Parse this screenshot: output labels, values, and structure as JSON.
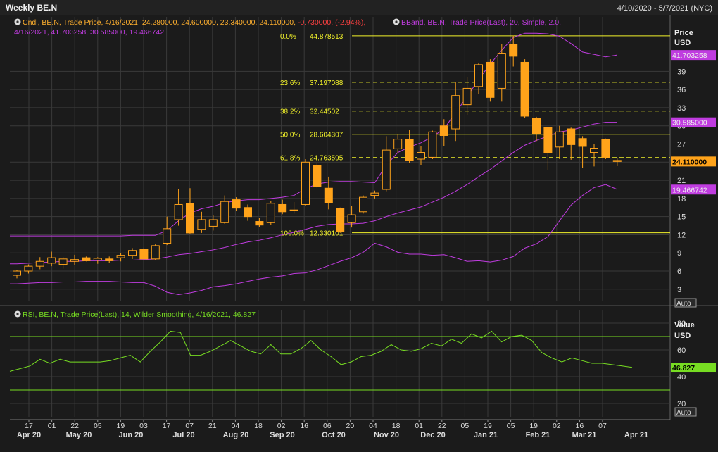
{
  "window": {
    "title": "Weekly BE.N",
    "date_range": "4/10/2020 - 5/7/2021 (NYC)"
  },
  "legend": {
    "candle_line1_prefix": "Cndl, BE.N, Trade Price, 4/16/2021, 24.280000, 24.600000, 23.340000, 24.110000, ",
    "candle_line1_change": "-0.730000, (-2.94%),",
    "bband_line1": "BBand, BE.N, Trade Price(Last), 20, Simple, 2.0,",
    "bband_line2": "4/16/2021, 41.703258, 30.585000, 19.466742",
    "rsi_line": "RSI, BE.N, Trade Price(Last), 14, Wilder Smoothing, 4/16/2021, 46.827"
  },
  "price_axis": {
    "title": "Price",
    "unit": "USD",
    "auto_label": "Auto",
    "upper_band_label": "41.703258",
    "middle_band_label": "30.585000",
    "last_price_label": "24.110000",
    "lower_band_label": "19.466742"
  },
  "rsi_axis": {
    "title": "Value",
    "unit": "USD",
    "auto_label": "Auto",
    "value_label": "46.827"
  },
  "colors": {
    "background": "#1b1b1b",
    "grid": "#3a3a3a",
    "candle": "#ffa31a",
    "bband": "#c03ce0",
    "fib": "#f2f22a",
    "rsi": "#77dd22",
    "text": "#dddddd",
    "down_change": "#ff4040"
  },
  "chart_data": [
    {
      "type": "candlestick",
      "title": "Weekly BE.N",
      "ylim": [
        1,
        48
      ],
      "yticks": [
        3,
        6,
        9,
        12,
        15,
        18,
        21,
        24,
        27,
        30,
        33,
        36,
        39
      ],
      "x_tick_labels": [
        "17",
        "01",
        "22",
        "05",
        "19",
        "03",
        "17",
        "07",
        "21",
        "04",
        "18",
        "02",
        "16",
        "06",
        "20",
        "04",
        "18",
        "01",
        "22",
        "05",
        "19",
        "05",
        "19",
        "02",
        "16",
        "07"
      ],
      "x_month_labels": [
        "Apr 20",
        "May 20",
        "Jun 20",
        "Jul 20",
        "Aug 20",
        "Sep 20",
        "Oct 20",
        "Nov 20",
        "Dec 20",
        "Jan 21",
        "Feb 21",
        "Mar 21",
        "Apr 21"
      ],
      "candles": [
        {
          "o": 5.3,
          "h": 6.2,
          "l": 4.8,
          "c": 6.0
        },
        {
          "o": 6.0,
          "h": 7.1,
          "l": 5.6,
          "c": 6.8
        },
        {
          "o": 6.8,
          "h": 8.3,
          "l": 6.3,
          "c": 7.6
        },
        {
          "o": 7.3,
          "h": 9.2,
          "l": 6.8,
          "c": 8.2
        },
        {
          "o": 7.1,
          "h": 8.3,
          "l": 6.4,
          "c": 8.0
        },
        {
          "o": 7.6,
          "h": 8.7,
          "l": 7.0,
          "c": 7.9
        },
        {
          "o": 8.2,
          "h": 8.4,
          "l": 7.6,
          "c": 7.7
        },
        {
          "o": 7.8,
          "h": 8.3,
          "l": 7.2,
          "c": 8.1
        },
        {
          "o": 8.0,
          "h": 8.4,
          "l": 7.3,
          "c": 7.7
        },
        {
          "o": 8.2,
          "h": 9.0,
          "l": 7.6,
          "c": 8.6
        },
        {
          "o": 8.6,
          "h": 9.8,
          "l": 8.0,
          "c": 9.4
        },
        {
          "o": 9.6,
          "h": 9.9,
          "l": 7.9,
          "c": 8.0
        },
        {
          "o": 8.0,
          "h": 10.5,
          "l": 7.8,
          "c": 10.2
        },
        {
          "o": 10.6,
          "h": 15.0,
          "l": 10.3,
          "c": 13.0
        },
        {
          "o": 14.5,
          "h": 19.5,
          "l": 13.5,
          "c": 17.0
        },
        {
          "o": 17.2,
          "h": 19.7,
          "l": 12.2,
          "c": 12.3
        },
        {
          "o": 12.9,
          "h": 15.8,
          "l": 12.3,
          "c": 14.5
        },
        {
          "o": 13.4,
          "h": 15.3,
          "l": 12.7,
          "c": 14.5
        },
        {
          "o": 14.0,
          "h": 18.5,
          "l": 13.8,
          "c": 17.5
        },
        {
          "o": 17.8,
          "h": 18.2,
          "l": 15.9,
          "c": 16.4
        },
        {
          "o": 16.5,
          "h": 17.0,
          "l": 14.3,
          "c": 15.0
        },
        {
          "o": 14.2,
          "h": 14.8,
          "l": 13.3,
          "c": 13.6
        },
        {
          "o": 14.0,
          "h": 17.6,
          "l": 13.6,
          "c": 17.2
        },
        {
          "o": 17.0,
          "h": 17.8,
          "l": 15.4,
          "c": 15.8
        },
        {
          "o": 16.0,
          "h": 17.4,
          "l": 15.5,
          "c": 16.1
        },
        {
          "o": 17.0,
          "h": 24.5,
          "l": 16.8,
          "c": 24.0
        },
        {
          "o": 23.5,
          "h": 23.8,
          "l": 19.8,
          "c": 20.0
        },
        {
          "o": 19.7,
          "h": 21.6,
          "l": 16.2,
          "c": 17.3
        },
        {
          "o": 16.3,
          "h": 16.5,
          "l": 12.3,
          "c": 12.5
        },
        {
          "o": 14.0,
          "h": 16.8,
          "l": 13.2,
          "c": 15.3
        },
        {
          "o": 15.8,
          "h": 18.5,
          "l": 15.5,
          "c": 18.2
        },
        {
          "o": 18.5,
          "h": 19.3,
          "l": 18.0,
          "c": 18.9
        },
        {
          "o": 19.5,
          "h": 28.3,
          "l": 19.2,
          "c": 26.0
        },
        {
          "o": 26.2,
          "h": 28.6,
          "l": 25.5,
          "c": 27.8
        },
        {
          "o": 27.8,
          "h": 29.3,
          "l": 23.8,
          "c": 24.3
        },
        {
          "o": 24.5,
          "h": 26.6,
          "l": 23.5,
          "c": 25.6
        },
        {
          "o": 24.8,
          "h": 29.2,
          "l": 24.5,
          "c": 29.0
        },
        {
          "o": 30.0,
          "h": 31.1,
          "l": 26.7,
          "c": 28.4
        },
        {
          "o": 29.5,
          "h": 37.2,
          "l": 27.5,
          "c": 35.0
        },
        {
          "o": 33.5,
          "h": 38.0,
          "l": 31.8,
          "c": 36.2
        },
        {
          "o": 36.5,
          "h": 40.4,
          "l": 35.2,
          "c": 40.1
        },
        {
          "o": 40.5,
          "h": 41.0,
          "l": 34.0,
          "c": 34.7
        },
        {
          "o": 36.2,
          "h": 43.5,
          "l": 34.0,
          "c": 42.0
        },
        {
          "o": 43.5,
          "h": 44.9,
          "l": 39.8,
          "c": 41.5
        },
        {
          "o": 40.5,
          "h": 41.0,
          "l": 31.3,
          "c": 31.6
        },
        {
          "o": 31.3,
          "h": 31.5,
          "l": 27.5,
          "c": 28.7
        },
        {
          "o": 29.7,
          "h": 29.8,
          "l": 22.7,
          "c": 25.5
        },
        {
          "o": 26.5,
          "h": 30.0,
          "l": 24.5,
          "c": 29.0
        },
        {
          "o": 29.5,
          "h": 29.7,
          "l": 24.4,
          "c": 26.9
        },
        {
          "o": 27.9,
          "h": 28.3,
          "l": 23.0,
          "c": 26.6
        },
        {
          "o": 25.6,
          "h": 27.0,
          "l": 23.3,
          "c": 26.3
        },
        {
          "o": 27.8,
          "h": 27.9,
          "l": 24.5,
          "c": 24.8
        },
        {
          "o": 24.28,
          "h": 24.6,
          "l": 23.34,
          "c": 24.11
        }
      ],
      "bband": {
        "upper": [
          11.8,
          11.8,
          11.8,
          11.8,
          11.8,
          11.8,
          11.8,
          11.8,
          11.8,
          11.8,
          11.9,
          11.9,
          11.9,
          12.7,
          14.3,
          15.6,
          16.3,
          16.7,
          17.3,
          17.6,
          17.8,
          17.8,
          18.0,
          18.2,
          18.5,
          19.6,
          20.4,
          20.7,
          20.8,
          20.8,
          20.7,
          20.6,
          23.5,
          25.6,
          26.5,
          27.2,
          28.2,
          29.5,
          32.2,
          34.8,
          37.7,
          40.2,
          42.5,
          44.6,
          45.3,
          45.3,
          45.2,
          44.8,
          43.6,
          42.2,
          41.8,
          41.4,
          41.7
        ],
        "middle": [
          7.2,
          7.3,
          7.4,
          7.5,
          7.6,
          7.6,
          7.7,
          7.7,
          7.7,
          7.8,
          7.8,
          7.9,
          8.0,
          8.3,
          8.7,
          8.9,
          9.2,
          9.5,
          9.9,
          10.4,
          10.8,
          11.1,
          11.5,
          12.0,
          12.4,
          12.9,
          13.4,
          13.7,
          13.8,
          13.8,
          13.9,
          14.3,
          15.0,
          15.6,
          16.1,
          16.6,
          17.4,
          18.2,
          19.2,
          20.3,
          21.6,
          22.8,
          24.2,
          25.6,
          26.8,
          27.6,
          28.3,
          29.0,
          29.3,
          29.8,
          30.3,
          30.6,
          30.6
        ],
        "lower": [
          3.9,
          4.0,
          4.1,
          4.1,
          4.2,
          4.2,
          4.3,
          4.3,
          4.3,
          4.2,
          4.1,
          4.1,
          3.5,
          2.5,
          2.1,
          2.4,
          2.8,
          3.4,
          3.6,
          3.9,
          4.3,
          4.7,
          5.0,
          5.2,
          5.6,
          5.7,
          6.2,
          6.9,
          7.6,
          8.2,
          9.1,
          10.6,
          10.0,
          9.1,
          8.8,
          8.8,
          8.6,
          8.7,
          8.2,
          7.6,
          7.7,
          7.5,
          7.8,
          8.4,
          9.8,
          10.5,
          11.7,
          14.3,
          16.9,
          18.5,
          19.8,
          20.3,
          19.5
        ]
      },
      "fibonacci": [
        {
          "pct": "0.0%",
          "value": 44.878513,
          "label": "44.878513",
          "style": "solid"
        },
        {
          "pct": "23.6%",
          "value": 37.197088,
          "label": "37.197088",
          "style": "dashed"
        },
        {
          "pct": "38.2%",
          "value": 32.44502,
          "label": "32.44502",
          "style": "dashed"
        },
        {
          "pct": "50.0%",
          "value": 28.604307,
          "label": "28.604307",
          "style": "solid"
        },
        {
          "pct": "61.8%",
          "value": 24.763595,
          "label": "24.763595",
          "style": "dashed"
        },
        {
          "pct": "100.0%",
          "value": 12.330101,
          "label": "12.330101",
          "style": "solid"
        }
      ]
    },
    {
      "type": "line",
      "title": "RSI",
      "ylim": [
        10,
        90
      ],
      "yticks": [
        20,
        40,
        60,
        80
      ],
      "reference_lines": [
        70,
        30
      ],
      "values": [
        44,
        46,
        48,
        53,
        50,
        53,
        51,
        51,
        51,
        51,
        52,
        54,
        56,
        51,
        59,
        66,
        74,
        73,
        56,
        56,
        59,
        63,
        67,
        63,
        59,
        57,
        64,
        57,
        57,
        61,
        67,
        60,
        55,
        49,
        51,
        55,
        56,
        59,
        64,
        60,
        59,
        61,
        65,
        63,
        68,
        65,
        72,
        69,
        74,
        66,
        70,
        71,
        67,
        58,
        54,
        51,
        54,
        52,
        50,
        50,
        49,
        48,
        47
      ]
    }
  ]
}
